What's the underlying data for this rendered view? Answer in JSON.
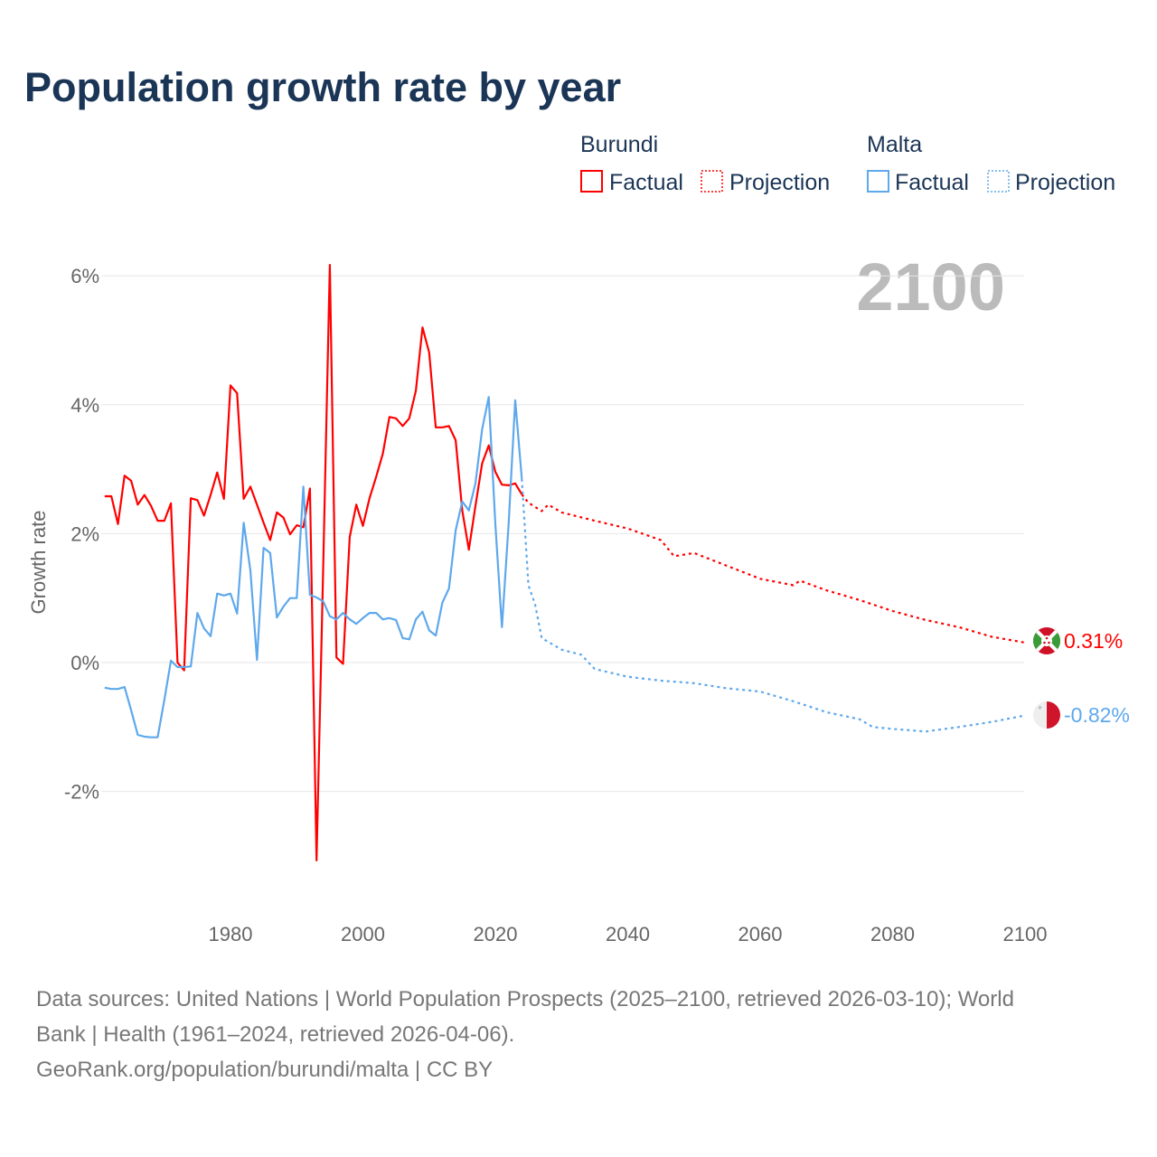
{
  "chart_data": {
    "type": "line",
    "title": "Population growth rate by year",
    "ylabel": "Growth rate",
    "xlabel": "",
    "year_display": "2100",
    "ylim": [
      -3.6,
      6.5
    ],
    "xlim": [
      1961,
      2100
    ],
    "x_ticks": [
      "1980",
      "2000",
      "2020",
      "2040",
      "2060",
      "2080",
      "2100"
    ],
    "x_tick_values": [
      1980,
      2000,
      2020,
      2040,
      2060,
      2080,
      2100
    ],
    "y_ticks": [
      "6%",
      "4%",
      "2%",
      "0%",
      "-2%"
    ],
    "y_tick_values": [
      6,
      4,
      2,
      0,
      -2
    ],
    "grid": true,
    "legend": {
      "placement": "top-right",
      "groups": [
        {
          "country": "Burundi",
          "factual": "Factual",
          "projection": "Projection"
        },
        {
          "country": "Malta",
          "factual": "Factual",
          "projection": "Projection"
        }
      ]
    },
    "series": [
      {
        "name": "Burundi",
        "color": "#ff0000",
        "end_label": "0.31%",
        "flag": "burundi-flag",
        "factual": {
          "start_year": 1961,
          "values": [
            2.58,
            2.58,
            2.15,
            2.9,
            2.82,
            2.45,
            2.6,
            2.43,
            2.2,
            2.2,
            2.47,
            0.0,
            -0.12,
            2.55,
            2.52,
            2.28,
            2.6,
            2.95,
            2.54,
            4.3,
            4.18,
            2.54,
            2.73,
            2.45,
            2.17,
            1.9,
            2.33,
            2.25,
            1.99,
            2.13,
            2.1,
            2.7,
            -3.07,
            1.5,
            6.17,
            0.08,
            -0.02,
            1.95,
            2.45,
            2.12,
            2.55,
            2.88,
            3.24,
            3.81,
            3.79,
            3.67,
            3.79,
            4.22,
            5.2,
            4.81,
            3.65,
            3.65,
            3.67,
            3.45,
            2.36,
            1.75,
            2.43,
            3.09,
            3.37,
            2.96,
            2.76,
            2.75,
            2.78,
            2.61
          ]
        },
        "projection": {
          "years": [
            2024,
            2025,
            2027,
            2028,
            2030,
            2035,
            2040,
            2045,
            2047,
            2050,
            2055,
            2060,
            2065,
            2066,
            2070,
            2075,
            2080,
            2085,
            2090,
            2095,
            2100
          ],
          "values": [
            2.61,
            2.48,
            2.35,
            2.45,
            2.33,
            2.2,
            2.08,
            1.9,
            1.65,
            1.7,
            1.5,
            1.3,
            1.2,
            1.27,
            1.12,
            0.97,
            0.8,
            0.66,
            0.55,
            0.4,
            0.31
          ]
        }
      },
      {
        "name": "Malta",
        "color": "#5ea8ec",
        "end_label": "-0.82%",
        "flag": "malta-flag",
        "factual": {
          "start_year": 1961,
          "values": [
            -0.39,
            -0.41,
            -0.41,
            -0.38,
            -0.74,
            -1.12,
            -1.15,
            -1.16,
            -1.16,
            -0.58,
            0.03,
            -0.07,
            -0.07,
            -0.06,
            0.77,
            0.53,
            0.41,
            1.07,
            1.04,
            1.07,
            0.76,
            2.17,
            1.43,
            0.04,
            1.78,
            1.7,
            0.7,
            0.87,
            1.0,
            1.0,
            2.73,
            1.05,
            1.01,
            0.95,
            0.72,
            0.67,
            0.77,
            0.67,
            0.6,
            0.69,
            0.77,
            0.77,
            0.67,
            0.69,
            0.66,
            0.38,
            0.36,
            0.67,
            0.79,
            0.5,
            0.42,
            0.93,
            1.15,
            2.05,
            2.5,
            2.36,
            2.78,
            3.62,
            4.12,
            2.15,
            0.55,
            2.15,
            4.07,
            2.85
          ]
        },
        "projection": {
          "years": [
            2024,
            2025,
            2026,
            2027,
            2030,
            2033,
            2035,
            2040,
            2045,
            2050,
            2055,
            2060,
            2065,
            2070,
            2075,
            2077,
            2080,
            2085,
            2090,
            2095,
            2100
          ],
          "values": [
            2.85,
            1.2,
            0.9,
            0.38,
            0.2,
            0.12,
            -0.1,
            -0.22,
            -0.28,
            -0.32,
            -0.4,
            -0.45,
            -0.6,
            -0.77,
            -0.88,
            -1.0,
            -1.03,
            -1.07,
            -1.0,
            -0.92,
            -0.82
          ]
        }
      }
    ]
  },
  "footer": {
    "source_line1": "Data sources: United Nations | World Population Prospects (2025–2100, retrieved 2026-03-10); World",
    "source_line2": "Bank | Health (1961–2024, retrieved 2026-04-06).",
    "attribution": "GeoRank.org/population/burundi/malta | CC BY"
  }
}
